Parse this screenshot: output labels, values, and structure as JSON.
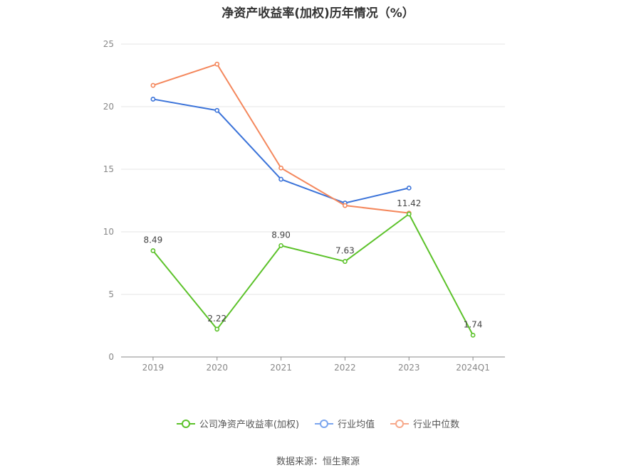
{
  "chart_data": {
    "type": "line",
    "title": "净资产收益率(加权)历年情况（%）",
    "categories": [
      "2019",
      "2020",
      "2021",
      "2022",
      "2023",
      "2024Q1"
    ],
    "ylim": [
      0,
      25
    ],
    "yticks": [
      0,
      5,
      10,
      15,
      20,
      25
    ],
    "grid": true,
    "legend_position": "bottom",
    "series": [
      {
        "name": "公司净资产收益率(加权)",
        "color": "#5cc22a",
        "values": [
          8.49,
          2.22,
          8.9,
          7.63,
          11.42,
          1.74
        ],
        "labels": [
          "8.49",
          "2.22",
          "8.90",
          "7.63",
          "11.42",
          "1.74"
        ]
      },
      {
        "name": "行业均值",
        "color": "#3b73d9",
        "values": [
          20.6,
          19.7,
          14.2,
          12.3,
          13.5,
          null
        ]
      },
      {
        "name": "行业中位数",
        "color": "#f4875c",
        "values": [
          21.7,
          23.4,
          15.1,
          12.1,
          11.5,
          null
        ]
      }
    ]
  },
  "legend_colors": [
    "#5cc22a",
    "#7aa5ee",
    "#f7a88a"
  ],
  "source": "数据来源：恒生聚源"
}
